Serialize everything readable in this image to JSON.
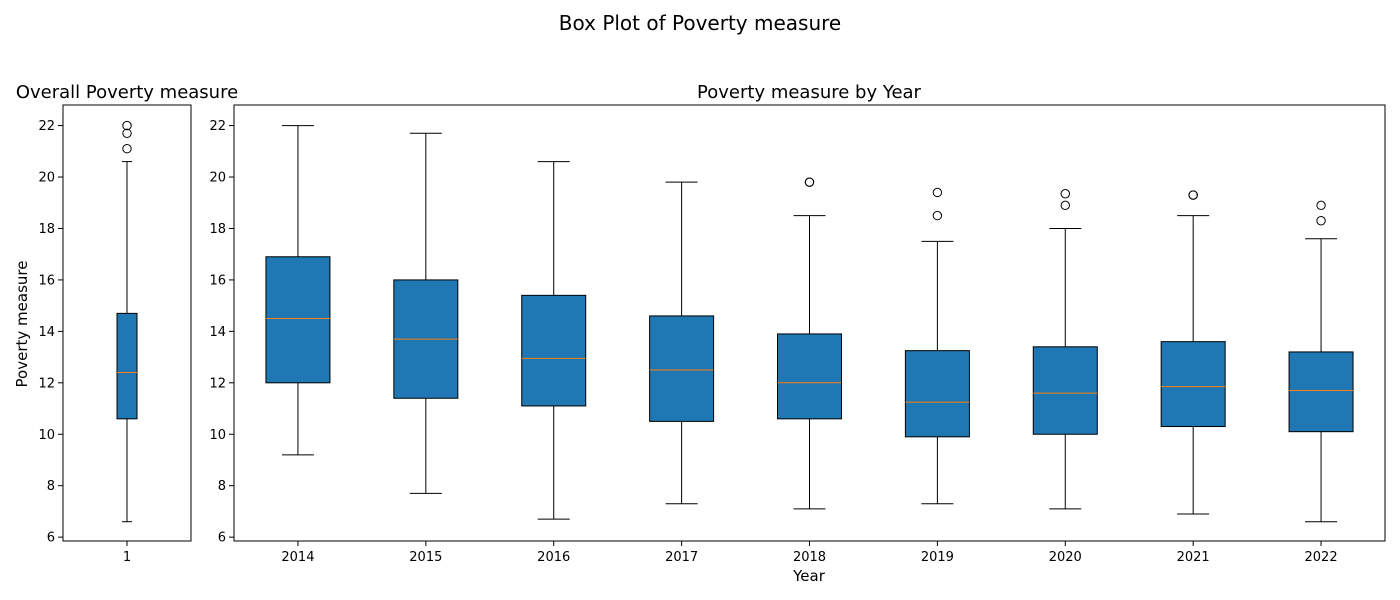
{
  "suptitle": "Box Plot of Poverty measure",
  "chart_data": [
    {
      "type": "box",
      "title": "Overall Poverty measure",
      "xlabel": "",
      "ylabel": "Poverty measure",
      "ylim": [
        5.85,
        22.8
      ],
      "yticks": [
        6,
        8,
        10,
        12,
        14,
        16,
        18,
        20,
        22
      ],
      "categories": [
        "1"
      ],
      "boxes": [
        {
          "label": "1",
          "min": 6.6,
          "q1": 10.6,
          "median": 12.4,
          "q3": 14.7,
          "max": 20.6,
          "outliers": [
            21.1,
            21.7,
            22.0
          ]
        }
      ],
      "box_color": "#1f77b4",
      "median_color": "#ff7f0e",
      "grid": false
    },
    {
      "type": "box",
      "title": "Poverty measure by Year",
      "xlabel": "Year",
      "ylabel": "",
      "ylim": [
        5.85,
        22.8
      ],
      "yticks": [
        6,
        8,
        10,
        12,
        14,
        16,
        18,
        20,
        22
      ],
      "categories": [
        "2014",
        "2015",
        "2016",
        "2017",
        "2018",
        "2019",
        "2020",
        "2021",
        "2022"
      ],
      "boxes": [
        {
          "label": "2014",
          "min": 9.2,
          "q1": 12.0,
          "median": 14.5,
          "q3": 16.9,
          "max": 22.0,
          "outliers": []
        },
        {
          "label": "2015",
          "min": 7.7,
          "q1": 11.4,
          "median": 13.7,
          "q3": 16.0,
          "max": 21.7,
          "outliers": []
        },
        {
          "label": "2016",
          "min": 6.7,
          "q1": 11.1,
          "median": 12.95,
          "q3": 15.4,
          "max": 20.6,
          "outliers": []
        },
        {
          "label": "2017",
          "min": 7.3,
          "q1": 10.5,
          "median": 12.5,
          "q3": 14.6,
          "max": 19.8,
          "outliers": []
        },
        {
          "label": "2018",
          "min": 7.1,
          "q1": 10.6,
          "median": 12.0,
          "q3": 13.9,
          "max": 18.5,
          "outliers": [
            19.8,
            19.8
          ]
        },
        {
          "label": "2019",
          "min": 7.3,
          "q1": 9.9,
          "median": 11.25,
          "q3": 13.25,
          "max": 17.5,
          "outliers": [
            18.5,
            19.4
          ]
        },
        {
          "label": "2020",
          "min": 7.1,
          "q1": 10.0,
          "median": 11.6,
          "q3": 13.4,
          "max": 18.0,
          "outliers": [
            18.9,
            19.35
          ]
        },
        {
          "label": "2021",
          "min": 6.9,
          "q1": 10.3,
          "median": 11.85,
          "q3": 13.6,
          "max": 18.5,
          "outliers": [
            19.3,
            19.3
          ]
        },
        {
          "label": "2022",
          "min": 6.6,
          "q1": 10.1,
          "median": 11.7,
          "q3": 13.2,
          "max": 17.6,
          "outliers": [
            18.3,
            18.9
          ]
        }
      ],
      "box_color": "#1f77b4",
      "median_color": "#ff7f0e",
      "grid": false
    }
  ]
}
